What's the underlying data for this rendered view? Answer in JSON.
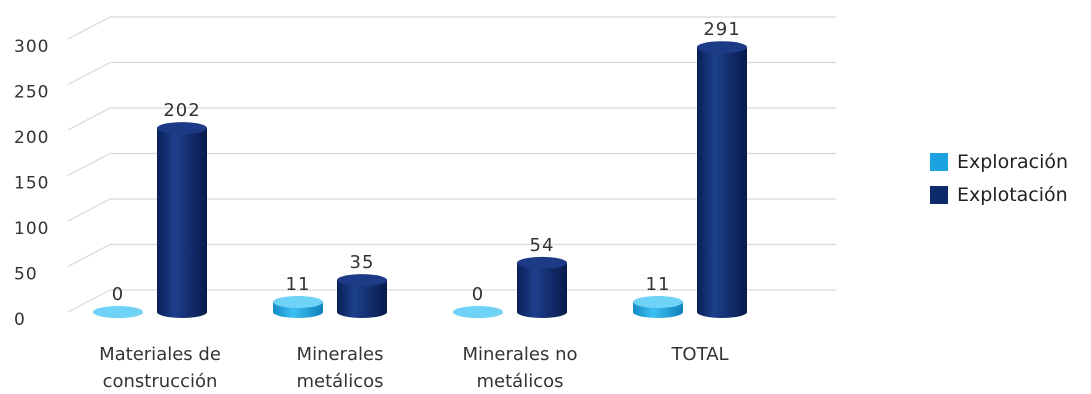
{
  "chart_data": {
    "type": "bar",
    "categories": [
      [
        "Materiales de",
        "construcción"
      ],
      [
        "Minerales",
        "metálicos"
      ],
      [
        "Minerales no",
        "metálicos"
      ],
      [
        "TOTAL"
      ]
    ],
    "series": [
      {
        "name": "Exploración",
        "values": [
          0,
          11,
          0,
          11
        ],
        "color": "#1aa3e0"
      },
      {
        "name": "Explotación",
        "values": [
          202,
          35,
          54,
          291
        ],
        "color": "#0d2a6a"
      }
    ],
    "yticks": [
      "0",
      "50",
      "100",
      "150",
      "200",
      "250",
      "300"
    ],
    "ylim": [
      0,
      300
    ],
    "grid": true,
    "legend_position": "right",
    "bar_style": "3d-cylinder"
  }
}
